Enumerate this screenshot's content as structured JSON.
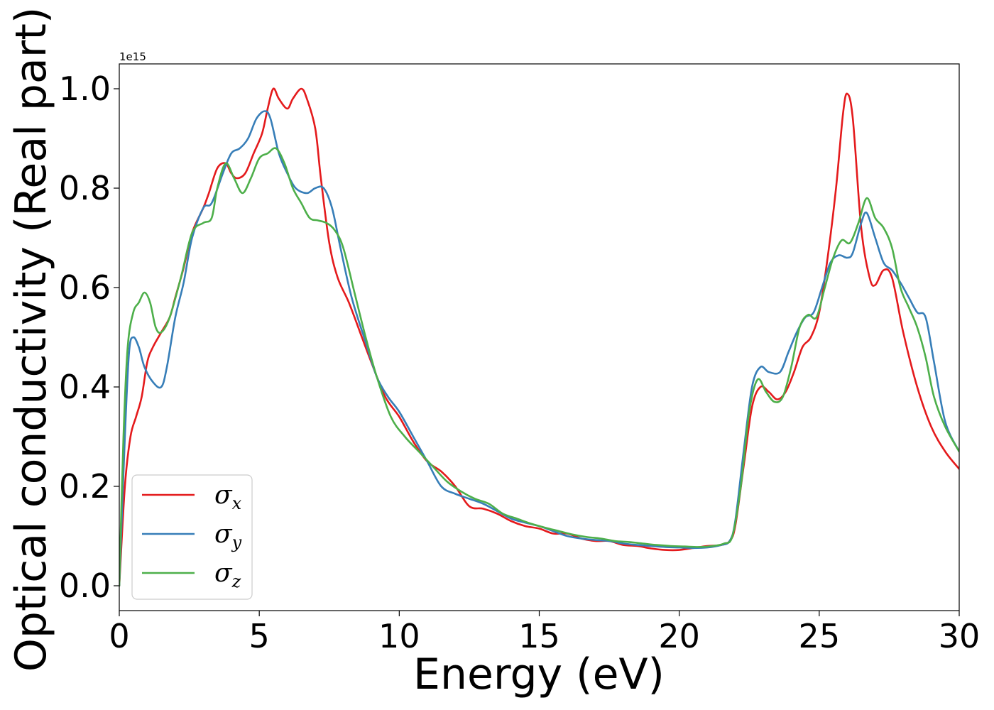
{
  "chart_data": {
    "type": "line",
    "title": "",
    "xlabel": "Energy (eV)",
    "ylabel": "Optical conductivity (Real part)",
    "y_offset_text": "1e15",
    "xlim": [
      0,
      30
    ],
    "ylim": [
      -0.05,
      1.05
    ],
    "x_ticks": [
      0,
      5,
      10,
      15,
      20,
      25,
      30
    ],
    "x_tick_labels": [
      "0",
      "5",
      "10",
      "15",
      "20",
      "25",
      "30"
    ],
    "y_ticks": [
      0.0,
      0.2,
      0.4,
      0.6,
      0.8,
      1.0
    ],
    "y_tick_labels": [
      "0.0",
      "0.2",
      "0.4",
      "0.6",
      "0.8",
      "1.0"
    ],
    "grid": false,
    "legend_position": "bottom-left",
    "series": [
      {
        "name": "σx",
        "symbol": "σ",
        "subscript": "x",
        "color": "#e41a1c",
        "points": [
          [
            0,
            0
          ],
          [
            0.2,
            0.2
          ],
          [
            0.4,
            0.3
          ],
          [
            0.6,
            0.34
          ],
          [
            0.8,
            0.38
          ],
          [
            1.0,
            0.45
          ],
          [
            1.2,
            0.48
          ],
          [
            1.5,
            0.51
          ],
          [
            1.8,
            0.54
          ],
          [
            2.0,
            0.58
          ],
          [
            2.3,
            0.64
          ],
          [
            2.6,
            0.71
          ],
          [
            3.0,
            0.76
          ],
          [
            3.2,
            0.79
          ],
          [
            3.5,
            0.84
          ],
          [
            3.8,
            0.85
          ],
          [
            4.0,
            0.83
          ],
          [
            4.2,
            0.82
          ],
          [
            4.5,
            0.83
          ],
          [
            4.8,
            0.87
          ],
          [
            5.1,
            0.91
          ],
          [
            5.3,
            0.96
          ],
          [
            5.5,
            1.0
          ],
          [
            5.7,
            0.98
          ],
          [
            6.0,
            0.96
          ],
          [
            6.2,
            0.98
          ],
          [
            6.5,
            1.0
          ],
          [
            6.7,
            0.98
          ],
          [
            7.0,
            0.92
          ],
          [
            7.2,
            0.82
          ],
          [
            7.5,
            0.69
          ],
          [
            7.8,
            0.62
          ],
          [
            8.2,
            0.57
          ],
          [
            8.6,
            0.51
          ],
          [
            9.0,
            0.45
          ],
          [
            9.5,
            0.38
          ],
          [
            10.0,
            0.34
          ],
          [
            10.5,
            0.29
          ],
          [
            11.0,
            0.25
          ],
          [
            11.5,
            0.23
          ],
          [
            12.0,
            0.2
          ],
          [
            12.5,
            0.16
          ],
          [
            13.0,
            0.155
          ],
          [
            13.5,
            0.145
          ],
          [
            14.0,
            0.13
          ],
          [
            14.5,
            0.12
          ],
          [
            15.0,
            0.115
          ],
          [
            15.5,
            0.105
          ],
          [
            16.0,
            0.105
          ],
          [
            16.5,
            0.095
          ],
          [
            17.0,
            0.09
          ],
          [
            17.5,
            0.09
          ],
          [
            18.0,
            0.082
          ],
          [
            18.5,
            0.08
          ],
          [
            19.0,
            0.075
          ],
          [
            19.5,
            0.072
          ],
          [
            20.0,
            0.072
          ],
          [
            20.5,
            0.076
          ],
          [
            21.0,
            0.08
          ],
          [
            21.5,
            0.082
          ],
          [
            21.8,
            0.09
          ],
          [
            22.0,
            0.12
          ],
          [
            22.3,
            0.24
          ],
          [
            22.6,
            0.36
          ],
          [
            22.9,
            0.4
          ],
          [
            23.2,
            0.39
          ],
          [
            23.5,
            0.375
          ],
          [
            23.8,
            0.39
          ],
          [
            24.1,
            0.43
          ],
          [
            24.4,
            0.48
          ],
          [
            24.7,
            0.5
          ],
          [
            25.0,
            0.55
          ],
          [
            25.3,
            0.66
          ],
          [
            25.6,
            0.8
          ],
          [
            25.85,
            0.95
          ],
          [
            26.0,
            0.99
          ],
          [
            26.2,
            0.94
          ],
          [
            26.5,
            0.72
          ],
          [
            26.8,
            0.62
          ],
          [
            27.0,
            0.605
          ],
          [
            27.3,
            0.635
          ],
          [
            27.6,
            0.62
          ],
          [
            28.0,
            0.51
          ],
          [
            28.5,
            0.4
          ],
          [
            29.0,
            0.32
          ],
          [
            29.5,
            0.27
          ],
          [
            30.0,
            0.235
          ]
        ]
      },
      {
        "name": "σy",
        "symbol": "σ",
        "subscript": "y",
        "color": "#377eb8",
        "points": [
          [
            0,
            0
          ],
          [
            0.2,
            0.3
          ],
          [
            0.35,
            0.47
          ],
          [
            0.5,
            0.5
          ],
          [
            0.7,
            0.48
          ],
          [
            0.9,
            0.44
          ],
          [
            1.2,
            0.41
          ],
          [
            1.5,
            0.4
          ],
          [
            1.7,
            0.44
          ],
          [
            2.0,
            0.54
          ],
          [
            2.3,
            0.61
          ],
          [
            2.6,
            0.7
          ],
          [
            3.0,
            0.76
          ],
          [
            3.3,
            0.77
          ],
          [
            3.7,
            0.83
          ],
          [
            4.0,
            0.87
          ],
          [
            4.3,
            0.88
          ],
          [
            4.6,
            0.9
          ],
          [
            4.9,
            0.94
          ],
          [
            5.2,
            0.955
          ],
          [
            5.4,
            0.94
          ],
          [
            5.7,
            0.87
          ],
          [
            6.0,
            0.83
          ],
          [
            6.3,
            0.8
          ],
          [
            6.7,
            0.79
          ],
          [
            7.0,
            0.8
          ],
          [
            7.3,
            0.8
          ],
          [
            7.6,
            0.76
          ],
          [
            7.9,
            0.68
          ],
          [
            8.3,
            0.58
          ],
          [
            8.8,
            0.49
          ],
          [
            9.2,
            0.42
          ],
          [
            9.6,
            0.38
          ],
          [
            10.0,
            0.35
          ],
          [
            10.5,
            0.3
          ],
          [
            11.0,
            0.25
          ],
          [
            11.5,
            0.2
          ],
          [
            12.0,
            0.185
          ],
          [
            12.5,
            0.175
          ],
          [
            13.0,
            0.165
          ],
          [
            13.5,
            0.15
          ],
          [
            14.0,
            0.135
          ],
          [
            14.5,
            0.127
          ],
          [
            15.0,
            0.12
          ],
          [
            15.5,
            0.11
          ],
          [
            16.0,
            0.1
          ],
          [
            16.5,
            0.095
          ],
          [
            17.0,
            0.092
          ],
          [
            17.5,
            0.09
          ],
          [
            18.0,
            0.085
          ],
          [
            18.5,
            0.082
          ],
          [
            19.0,
            0.08
          ],
          [
            19.5,
            0.078
          ],
          [
            20.0,
            0.077
          ],
          [
            20.5,
            0.076
          ],
          [
            21.0,
            0.077
          ],
          [
            21.5,
            0.082
          ],
          [
            21.8,
            0.09
          ],
          [
            22.0,
            0.13
          ],
          [
            22.3,
            0.27
          ],
          [
            22.6,
            0.4
          ],
          [
            22.9,
            0.44
          ],
          [
            23.2,
            0.43
          ],
          [
            23.6,
            0.43
          ],
          [
            23.9,
            0.47
          ],
          [
            24.2,
            0.51
          ],
          [
            24.5,
            0.54
          ],
          [
            24.8,
            0.55
          ],
          [
            25.1,
            0.6
          ],
          [
            25.4,
            0.65
          ],
          [
            25.7,
            0.665
          ],
          [
            26.0,
            0.66
          ],
          [
            26.2,
            0.67
          ],
          [
            26.5,
            0.73
          ],
          [
            26.7,
            0.75
          ],
          [
            27.0,
            0.7
          ],
          [
            27.3,
            0.65
          ],
          [
            27.6,
            0.635
          ],
          [
            27.9,
            0.61
          ],
          [
            28.2,
            0.58
          ],
          [
            28.5,
            0.55
          ],
          [
            28.8,
            0.54
          ],
          [
            29.1,
            0.45
          ],
          [
            29.5,
            0.33
          ],
          [
            30.0,
            0.27
          ]
        ]
      },
      {
        "name": "σz",
        "symbol": "σ",
        "subscript": "z",
        "color": "#4daf4a",
        "points": [
          [
            0,
            0
          ],
          [
            0.15,
            0.3
          ],
          [
            0.3,
            0.48
          ],
          [
            0.5,
            0.55
          ],
          [
            0.7,
            0.57
          ],
          [
            0.9,
            0.59
          ],
          [
            1.1,
            0.57
          ],
          [
            1.3,
            0.52
          ],
          [
            1.5,
            0.51
          ],
          [
            1.8,
            0.54
          ],
          [
            2.2,
            0.62
          ],
          [
            2.6,
            0.71
          ],
          [
            3.0,
            0.73
          ],
          [
            3.3,
            0.74
          ],
          [
            3.5,
            0.8
          ],
          [
            3.8,
            0.85
          ],
          [
            4.1,
            0.82
          ],
          [
            4.4,
            0.79
          ],
          [
            4.7,
            0.82
          ],
          [
            5.0,
            0.86
          ],
          [
            5.3,
            0.87
          ],
          [
            5.6,
            0.88
          ],
          [
            5.9,
            0.85
          ],
          [
            6.2,
            0.8
          ],
          [
            6.5,
            0.77
          ],
          [
            6.8,
            0.74
          ],
          [
            7.1,
            0.735
          ],
          [
            7.4,
            0.73
          ],
          [
            7.7,
            0.715
          ],
          [
            8.0,
            0.68
          ],
          [
            8.4,
            0.59
          ],
          [
            8.8,
            0.5
          ],
          [
            9.2,
            0.42
          ],
          [
            9.7,
            0.34
          ],
          [
            10.2,
            0.3
          ],
          [
            10.7,
            0.27
          ],
          [
            11.2,
            0.24
          ],
          [
            11.7,
            0.21
          ],
          [
            12.2,
            0.19
          ],
          [
            12.7,
            0.175
          ],
          [
            13.2,
            0.165
          ],
          [
            13.7,
            0.145
          ],
          [
            14.2,
            0.135
          ],
          [
            14.7,
            0.125
          ],
          [
            15.2,
            0.117
          ],
          [
            15.7,
            0.11
          ],
          [
            16.2,
            0.103
          ],
          [
            16.7,
            0.098
          ],
          [
            17.2,
            0.095
          ],
          [
            17.7,
            0.09
          ],
          [
            18.2,
            0.088
          ],
          [
            18.7,
            0.085
          ],
          [
            19.2,
            0.082
          ],
          [
            19.7,
            0.08
          ],
          [
            20.2,
            0.079
          ],
          [
            20.7,
            0.078
          ],
          [
            21.2,
            0.08
          ],
          [
            21.6,
            0.085
          ],
          [
            21.9,
            0.1
          ],
          [
            22.2,
            0.2
          ],
          [
            22.5,
            0.35
          ],
          [
            22.8,
            0.415
          ],
          [
            23.1,
            0.39
          ],
          [
            23.4,
            0.37
          ],
          [
            23.7,
            0.38
          ],
          [
            24.0,
            0.44
          ],
          [
            24.3,
            0.52
          ],
          [
            24.6,
            0.545
          ],
          [
            24.9,
            0.54
          ],
          [
            25.2,
            0.6
          ],
          [
            25.5,
            0.66
          ],
          [
            25.8,
            0.695
          ],
          [
            26.1,
            0.69
          ],
          [
            26.4,
            0.73
          ],
          [
            26.7,
            0.78
          ],
          [
            27.0,
            0.74
          ],
          [
            27.3,
            0.72
          ],
          [
            27.6,
            0.68
          ],
          [
            27.9,
            0.6
          ],
          [
            28.2,
            0.56
          ],
          [
            28.5,
            0.52
          ],
          [
            28.8,
            0.46
          ],
          [
            29.1,
            0.38
          ],
          [
            29.5,
            0.32
          ],
          [
            30.0,
            0.27
          ]
        ]
      }
    ]
  }
}
